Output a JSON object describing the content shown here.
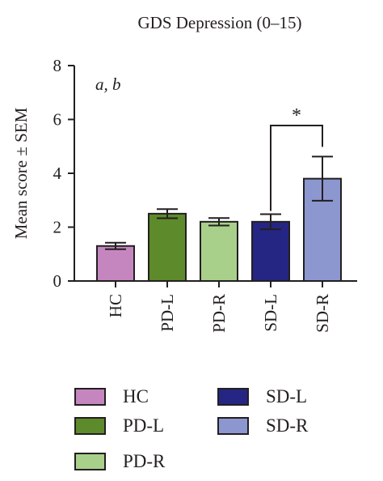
{
  "chart_data": {
    "type": "bar",
    "title": "GDS Depression (0–15)",
    "ylabel": "Mean score ± SEM",
    "xlabel": "",
    "ylim": [
      0,
      8
    ],
    "yticks": [
      0,
      2,
      4,
      6,
      8
    ],
    "categories": [
      "HC",
      "PD-L",
      "PD-R",
      "SD-L",
      "SD-R"
    ],
    "values": [
      1.3,
      2.5,
      2.2,
      2.2,
      3.8
    ],
    "errors": [
      0.12,
      0.17,
      0.14,
      0.28,
      0.82
    ],
    "colors": [
      "#c586bf",
      "#5d8a2a",
      "#a8d08a",
      "#252683",
      "#8c97cf"
    ],
    "annotation": "a, b",
    "significance": {
      "label": "*",
      "between": [
        "SD-L",
        "SD-R"
      ]
    },
    "legend": {
      "placement": "bottom",
      "entries": [
        "HC",
        "SD-L",
        "PD-L",
        "SD-R",
        "PD-R"
      ]
    },
    "grid": false
  }
}
